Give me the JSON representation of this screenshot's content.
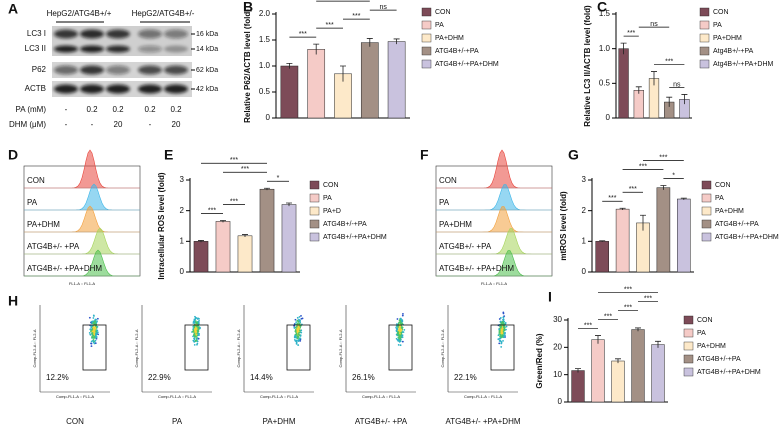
{
  "blot": {
    "panel": "A",
    "groups": [
      "HepG2/ATG4B+/+",
      "HepG2/ATG4B+/-"
    ],
    "rows": [
      "LC3 I",
      "LC3 II",
      "P62",
      "ACTB"
    ],
    "sizes": [
      "16 kDa",
      "14 kDa",
      "62 kDa",
      "42 kDa"
    ],
    "treatments": [
      {
        "name": "PA (mM)",
        "levels": [
          "-",
          "0.2",
          "0.2",
          "0.2",
          "0.2"
        ]
      },
      {
        "name": "DHM (μM)",
        "levels": [
          "-",
          "-",
          "20",
          "-",
          "20"
        ]
      }
    ]
  },
  "flow_histograms": [
    {
      "panel": "D",
      "rows": [
        "CON",
        "PA",
        "PA+DHM",
        "ATG4B+/- +PA",
        "ATG4B+/- +PA+DHM"
      ],
      "x_label": "FL1-A :: FL1-A"
    },
    {
      "panel": "F",
      "rows": [
        "CON",
        "PA",
        "PA+DHM",
        "ATG4B+/- +PA",
        "ATG4B+/- +PA+DHM"
      ],
      "x_label": "FL1-A :: FL1-A"
    }
  ],
  "flow_scatter": {
    "panel": "H",
    "x_label": "Comp-FL1-A :: FL1-A",
    "y_label": "Comp-FL2-A :: FL2-A",
    "plots": [
      {
        "name": "CON",
        "percent": "12.2%"
      },
      {
        "name": "PA",
        "percent": "22.9%"
      },
      {
        "name": "PA+DHM",
        "percent": "14.4%"
      },
      {
        "name": "ATG4B+/- +PA",
        "percent": "26.1%"
      },
      {
        "name": "ATG4B+/- +PA+DHM",
        "percent": "22.1%"
      }
    ]
  },
  "chart_data": [
    {
      "panel": "B",
      "type": "bar",
      "y_label": "Relative P62/ACTB level (fold)",
      "ylim": [
        0,
        2
      ],
      "yticks": [
        0,
        0.5,
        {
          "value": 1,
          "label": "1.0"
        },
        1.5,
        {
          "value": 2,
          "label": "2.0"
        }
      ],
      "series": [
        {
          "name": "CON",
          "color": "#7d4b58",
          "values": [
            1.0
          ],
          "errors": [
            0.05
          ]
        },
        {
          "name": "PA",
          "color": "#f5cbc7",
          "values": [
            1.32
          ],
          "errors": [
            0.1
          ]
        },
        {
          "name": "PA+DHM",
          "color": "#fde9c9",
          "values": [
            0.85
          ],
          "errors": [
            0.15
          ]
        },
        {
          "name": "ATG4B+/-+PA",
          "color": "#a39085",
          "values": [
            1.45
          ],
          "errors": [
            0.08
          ]
        },
        {
          "name": "ATG4B+/-+PA+DHM",
          "color": "#c9c2de",
          "values": [
            1.47
          ],
          "errors": [
            0.05
          ]
        }
      ],
      "comparisons": [
        {
          "from": "CON",
          "to": "PA",
          "label": "***"
        },
        {
          "from": "PA",
          "to": "PA+DHM",
          "label": "***"
        },
        {
          "from": "PA+DHM",
          "to": "ATG4B+/-+PA",
          "label": "***"
        },
        {
          "from": "ATG4B+/-+PA",
          "to": "ATG4B+/-+PA+DHM",
          "label": "ns"
        },
        {
          "from": "PA",
          "to": "ATG4B+/-+PA",
          "label": "ns"
        }
      ]
    },
    {
      "panel": "C",
      "type": "bar",
      "y_label": "Relative LC3 II/ACTB level (fold)",
      "ylim": [
        0,
        1.5
      ],
      "yticks": [
        0,
        0.5,
        {
          "value": 1,
          "label": "1.0"
        },
        1.5
      ],
      "series": [
        {
          "name": "CON",
          "color": "#7d4b58",
          "values": [
            1.0
          ],
          "errors": [
            0.08
          ]
        },
        {
          "name": "PA",
          "color": "#f5cbc7",
          "values": [
            0.4
          ],
          "errors": [
            0.05
          ]
        },
        {
          "name": "PA+DHM",
          "color": "#fde9c9",
          "values": [
            0.57
          ],
          "errors": [
            0.1
          ]
        },
        {
          "name": "Atg4B+/-+PA",
          "color": "#a39085",
          "values": [
            0.23
          ],
          "errors": [
            0.07
          ]
        },
        {
          "name": "Atg4B+/-+PA+DHM",
          "color": "#c9c2de",
          "values": [
            0.27
          ],
          "errors": [
            0.07
          ]
        }
      ],
      "comparisons": [
        {
          "from": "CON",
          "to": "PA",
          "label": "***"
        },
        {
          "from": "Atg4B+/-+PA",
          "to": "Atg4B+/-+PA+DHM",
          "label": "ns"
        },
        {
          "from": "PA+DHM",
          "to": "Atg4B+/-+PA+DHM",
          "label": "***"
        },
        {
          "from": "PA",
          "to": "Atg4B+/-+PA",
          "label": "ns"
        }
      ]
    },
    {
      "panel": "E",
      "type": "bar",
      "y_label": "Intracellular ROS level (fold)",
      "ylim": [
        0,
        3
      ],
      "yticks": [
        0,
        1,
        2,
        3
      ],
      "series": [
        {
          "name": "CON",
          "color": "#7d4b58",
          "values": [
            1.0
          ],
          "errors": [
            0.03
          ]
        },
        {
          "name": "PA",
          "color": "#f5cbc7",
          "values": [
            1.65
          ],
          "errors": [
            0.03
          ]
        },
        {
          "name": "PA+D",
          "color": "#fde9c9",
          "values": [
            1.18
          ],
          "errors": [
            0.04
          ]
        },
        {
          "name": "ATG4B+/-+PA",
          "color": "#a39085",
          "values": [
            2.7
          ],
          "errors": [
            0.03
          ]
        },
        {
          "name": "ATG4B+/-+PA+DHM",
          "color": "#c9c2de",
          "values": [
            2.2
          ],
          "errors": [
            0.05
          ]
        }
      ],
      "comparisons": [
        {
          "from": "CON",
          "to": "PA",
          "label": "***"
        },
        {
          "from": "PA",
          "to": "PA+D",
          "label": "***"
        },
        {
          "from": "ATG4B+/-+PA",
          "to": "ATG4B+/-+PA+DHM",
          "label": "*"
        },
        {
          "from": "CON",
          "to": "ATG4B+/-+PA",
          "label": "***"
        },
        {
          "from": "PA",
          "to": "ATG4B+/-+PA",
          "label": "***"
        }
      ]
    },
    {
      "panel": "G",
      "type": "bar",
      "y_label": "mtROS level (fold)",
      "ylim": [
        0,
        3
      ],
      "yticks": [
        0,
        1,
        2,
        3
      ],
      "series": [
        {
          "name": "CON",
          "color": "#7d4b58",
          "values": [
            1.0
          ],
          "errors": [
            0.02
          ]
        },
        {
          "name": "PA",
          "color": "#f5cbc7",
          "values": [
            2.05
          ],
          "errors": [
            0.03
          ]
        },
        {
          "name": "PA+DHM",
          "color": "#fde9c9",
          "values": [
            1.6
          ],
          "errors": [
            0.25
          ]
        },
        {
          "name": "ATG4B+/-+PA",
          "color": "#a39085",
          "values": [
            2.75
          ],
          "errors": [
            0.07
          ]
        },
        {
          "name": "ATG4B+/-+PA+DHM",
          "color": "#c9c2de",
          "values": [
            2.38
          ],
          "errors": [
            0.03
          ]
        }
      ],
      "comparisons": [
        {
          "from": "CON",
          "to": "PA",
          "label": "***"
        },
        {
          "from": "PA",
          "to": "PA+DHM",
          "label": "***"
        },
        {
          "from": "ATG4B+/-+PA",
          "to": "ATG4B+/-+PA+DHM",
          "label": "*"
        },
        {
          "from": "PA",
          "to": "ATG4B+/-+PA",
          "label": "***"
        },
        {
          "from": "PA+DHM",
          "to": "ATG4B+/-+PA+DHM",
          "label": "***"
        }
      ]
    },
    {
      "panel": "I",
      "type": "bar",
      "y_label": "Green/Red (%)",
      "ylim": [
        0,
        30
      ],
      "yticks": [
        0,
        10,
        20,
        30
      ],
      "series": [
        {
          "name": "CON",
          "color": "#7d4b58",
          "values": [
            11.5
          ],
          "errors": [
            0.7
          ]
        },
        {
          "name": "PA",
          "color": "#f5cbc7",
          "values": [
            22.8
          ],
          "errors": [
            1.5
          ]
        },
        {
          "name": "PA+DHM",
          "color": "#fde9c9",
          "values": [
            15
          ],
          "errors": [
            0.8
          ]
        },
        {
          "name": "ATG4B+/-+PA",
          "color": "#a39085",
          "values": [
            26.5
          ],
          "errors": [
            0.6
          ]
        },
        {
          "name": "ATG4B+/-+PA+DHM",
          "color": "#c9c2de",
          "values": [
            21
          ],
          "errors": [
            1.2
          ]
        }
      ],
      "comparisons": [
        {
          "from": "CON",
          "to": "PA",
          "label": "***"
        },
        {
          "from": "PA",
          "to": "PA+DHM",
          "label": "***"
        },
        {
          "from": "PA+DHM",
          "to": "ATG4B+/-+PA",
          "label": "***"
        },
        {
          "from": "ATG4B+/-+PA",
          "to": "ATG4B+/-+PA+DHM",
          "label": "***"
        },
        {
          "from": "PA",
          "to": "ATG4B+/-+PA+DHM",
          "label": "***"
        }
      ]
    }
  ]
}
